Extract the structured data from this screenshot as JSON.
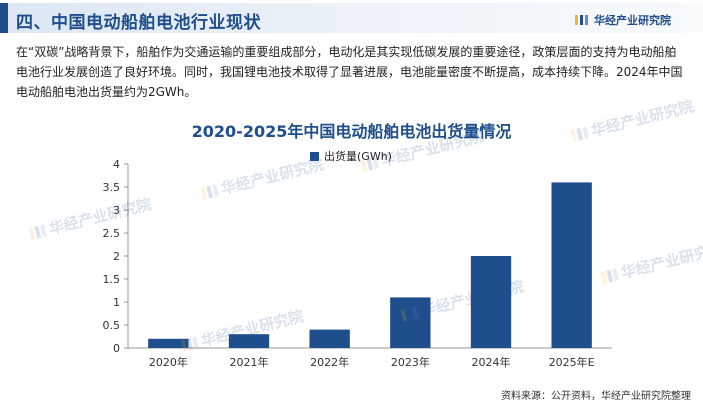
{
  "header": {
    "title": "四、中国电动船舶电池行业现状",
    "brand": "华经产业研究院"
  },
  "intro": "在“双碳”战略背景下，船舶作为交通运输的重要组成部分，电动化是其实现低碳发展的重要途径，政策层面的支持为电动船舶电池行业发展创造了良好环境。同时，我国锂电池技术取得了显著进展，电池能量密度不断提高，成本持续下降。2024年中国电动船舶电池出货量约为2GWh。",
  "watermark": "华经产业研究院",
  "source": "资料来源：公开资料，华经产业研究院整理",
  "colors": {
    "accent": "#1f4e8c",
    "bar": "#1f4e8c"
  },
  "chart_data": {
    "type": "bar",
    "title": "2020-2025年中国电动船舶电池出货量情况",
    "categories": [
      "2020年",
      "2021年",
      "2022年",
      "2023年",
      "2024年",
      "2025年E"
    ],
    "series": [
      {
        "name": "出货量(GWh)",
        "values": [
          0.2,
          0.3,
          0.4,
          1.1,
          2.0,
          3.6
        ]
      }
    ],
    "ylim": [
      0,
      4
    ],
    "yticks": [
      0,
      0.5,
      1,
      1.5,
      2,
      2.5,
      3,
      3.5,
      4
    ],
    "ytick_labels": [
      "0",
      "0.5",
      "1",
      "1.5",
      "2",
      "2.5",
      "3",
      "3.5",
      "4"
    ],
    "grid": false,
    "legend": "top-center"
  }
}
